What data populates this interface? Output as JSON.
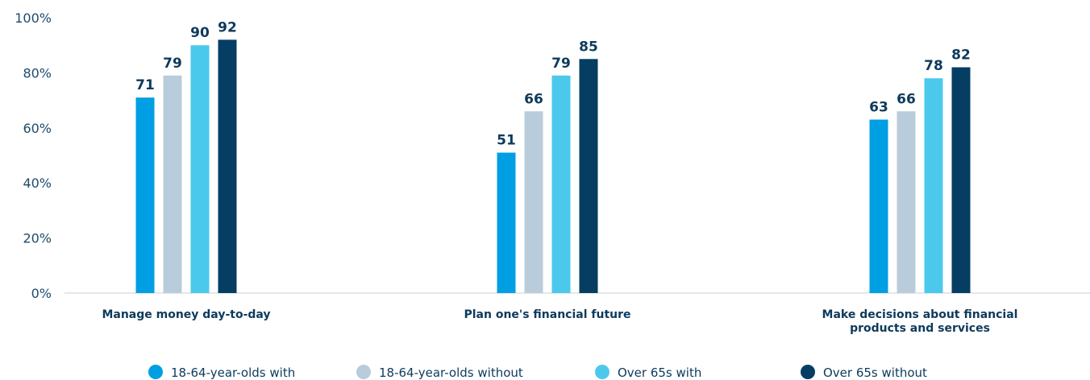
{
  "chart_data": {
    "type": "bar",
    "categories": [
      [
        "Manage money day-to-day"
      ],
      [
        "Plan one's financial future"
      ],
      [
        "Make decisions about financial",
        "products and services"
      ]
    ],
    "series": [
      {
        "name": "18-64-year-olds with",
        "color": "#009fe3",
        "values": [
          71,
          51,
          63
        ]
      },
      {
        "name": "18-64-year-olds without",
        "color": "#b8ccdb",
        "values": [
          79,
          66,
          66
        ]
      },
      {
        "name": "Over 65s with",
        "color": "#4bc9ec",
        "values": [
          90,
          79,
          78
        ]
      },
      {
        "name": "Over 65s without",
        "color": "#063d62",
        "values": [
          92,
          85,
          82
        ]
      }
    ],
    "yticks": [
      "0%",
      "20%",
      "40%",
      "60%",
      "80%",
      "100%"
    ],
    "ylim": [
      0,
      100
    ],
    "grid": false,
    "legend_position": "bottom"
  }
}
